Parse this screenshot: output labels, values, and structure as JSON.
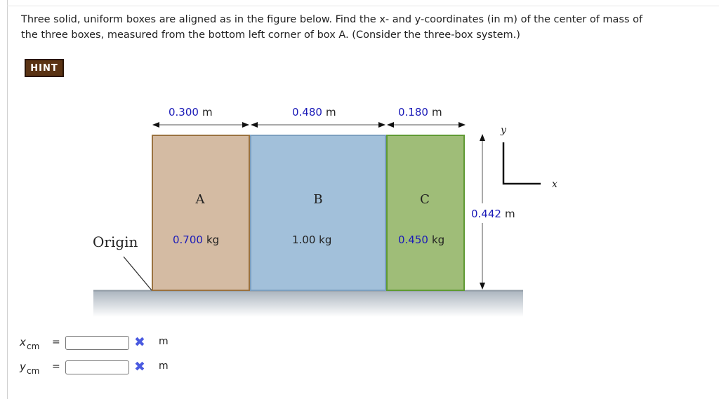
{
  "question": {
    "line1": "Three solid, uniform boxes are aligned as in the figure below. Find the x- and y-coordinates (in m) of the center of mass of",
    "line2": "the three boxes, measured from the bottom left corner of box A. (Consider the three-box system.)"
  },
  "hint_label": "HINT",
  "figure": {
    "widths": [
      "0.300",
      "0.480",
      "0.180"
    ],
    "width_unit": "m",
    "height": "0.442",
    "height_unit": "m",
    "boxes": [
      {
        "label": "A",
        "mass": "0.700",
        "unit": "kg",
        "color": "#d4bba3"
      },
      {
        "label": "B",
        "mass": "1.00 kg",
        "color": "#a2c0da"
      },
      {
        "label": "C",
        "mass": "0.450",
        "unit": "kg",
        "color": "#9fbd78"
      }
    ],
    "origin_label": "Origin",
    "axis_y": "y",
    "axis_x": "x"
  },
  "answers": [
    {
      "var": "x",
      "sub": "cm",
      "eq": "=",
      "value": "",
      "status_icon": "incorrect-x-icon",
      "unit": "m"
    },
    {
      "var": "y",
      "sub": "cm",
      "eq": "=",
      "value": "",
      "status_icon": "incorrect-x-icon",
      "unit": "m"
    }
  ],
  "colors": {
    "accent_blue": "#1b1bb8",
    "hint_bg": "#5a3314",
    "incorrect": "#4a5ae0"
  }
}
